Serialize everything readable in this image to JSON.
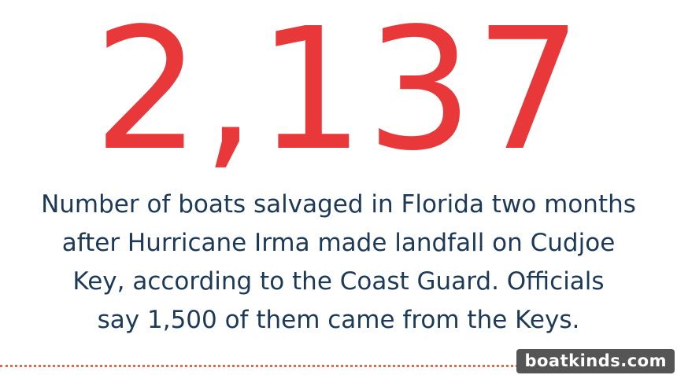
{
  "headline": {
    "number": "2,137"
  },
  "caption": {
    "lines": [
      "Number of boats salvaged in Florida two months",
      "after Hurricane Irma made landfall on Cudjoe",
      "Key, according to the Coast Guard. Officials",
      "say 1,500 of them came from the Keys."
    ]
  },
  "watermark": {
    "text": "boatkinds.com"
  },
  "colors": {
    "number": "#e8383a",
    "caption": "#1c3a57",
    "divider": "#e06a4a",
    "watermark_bg": "#555555",
    "watermark_text": "#ffffff",
    "background": "#ffffff"
  }
}
